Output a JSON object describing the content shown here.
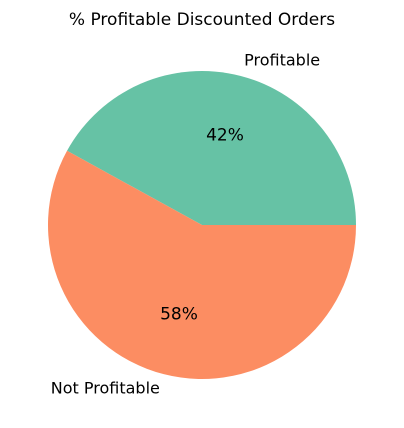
{
  "chart_data": {
    "type": "pie",
    "title": "% Profitable Discounted Orders",
    "start_angle_deg": 0,
    "direction": "counterclockwise",
    "slices": [
      {
        "label": "Profitable",
        "value": 42,
        "pct_label": "42%",
        "color": "#66c2a5"
      },
      {
        "label": "Not Profitable",
        "value": 58,
        "pct_label": "58%",
        "color": "#fc8d62"
      }
    ]
  }
}
